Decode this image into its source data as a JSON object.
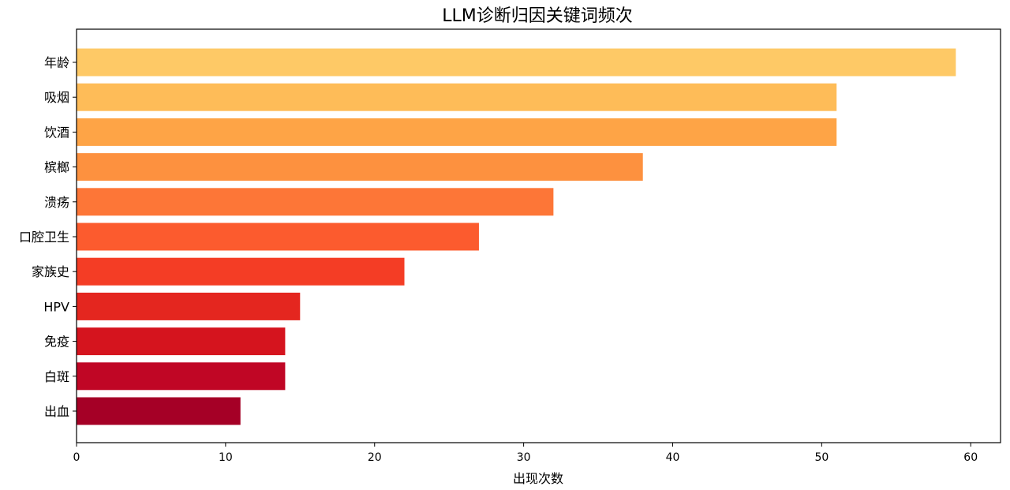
{
  "chart_data": {
    "type": "bar",
    "orientation": "horizontal",
    "title": "LLM诊断归因关键词频次",
    "xlabel": "出现次数",
    "ylabel": "",
    "categories": [
      "年龄",
      "吸烟",
      "饮酒",
      "槟榔",
      "溃疡",
      "口腔卫生",
      "家族史",
      "HPV",
      "免疫",
      "白斑",
      "出血"
    ],
    "values": [
      59,
      51,
      51,
      38,
      32,
      27,
      22,
      15,
      14,
      14,
      11
    ],
    "colors": [
      "#fec966",
      "#febc58",
      "#fea446",
      "#fd913f",
      "#fd7637",
      "#fc5b2e",
      "#f43d25",
      "#e4261f",
      "#d5141e",
      "#c00625",
      "#a50026"
    ],
    "xlim": [
      0,
      62.0
    ],
    "xticks": [
      0,
      10,
      20,
      30,
      40,
      50,
      60
    ],
    "grid": false,
    "legend": "none"
  }
}
